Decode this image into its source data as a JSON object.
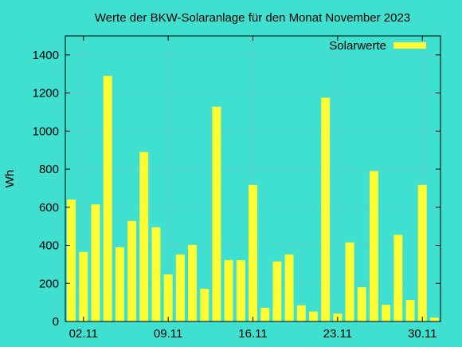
{
  "chart_data": {
    "type": "bar",
    "title": "Werte der BKW-Solaranlage für den Monat November 2023",
    "xlabel": "",
    "ylabel": "Wh",
    "ylim": [
      0,
      1500
    ],
    "yticks": [
      0,
      200,
      400,
      600,
      800,
      1000,
      1200,
      1400
    ],
    "xlim": [
      1,
      31
    ],
    "xticks": [
      {
        "day": 2,
        "label": "02.11"
      },
      {
        "day": 9,
        "label": "09.11"
      },
      {
        "day": 16,
        "label": "16.11"
      },
      {
        "day": 23,
        "label": "23.11"
      },
      {
        "day": 30,
        "label": "30.11"
      }
    ],
    "grid": true,
    "legend_position": "top-right",
    "background_color": "#40e0d0",
    "series": [
      {
        "name": "Solarwerte",
        "color": "#ffff33",
        "days": [
          1,
          2,
          3,
          4,
          5,
          6,
          7,
          8,
          9,
          10,
          11,
          12,
          13,
          14,
          15,
          16,
          17,
          18,
          19,
          20,
          21,
          22,
          23,
          24,
          25,
          26,
          27,
          28,
          29,
          30,
          31
        ],
        "values": [
          640,
          365,
          615,
          1290,
          390,
          528,
          890,
          495,
          247,
          352,
          402,
          172,
          1128,
          322,
          322,
          717,
          72,
          315,
          352,
          85,
          52,
          1175,
          42,
          415,
          180,
          790,
          88,
          455,
          113,
          717,
          20
        ]
      }
    ]
  }
}
